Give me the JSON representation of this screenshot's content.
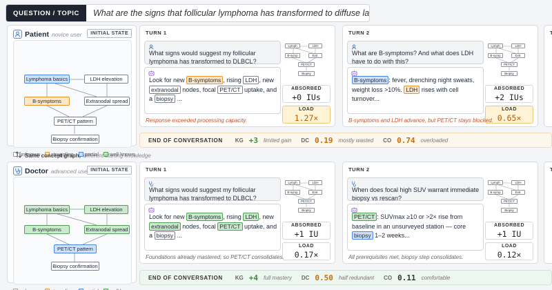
{
  "header": {
    "tag": "QUESTION / TOPIC",
    "question": "What are the signs that follicular lymphoma has transformed to diffuse large B-cell lymphoma?"
  },
  "legend": {
    "unknown": "unknown",
    "struggling": "struggling",
    "partial": "partial",
    "well_known": "well known"
  },
  "between": {
    "bold": "Same concept graph,",
    "italic": "different starting knowledge"
  },
  "colors": {
    "struggling": "#fde7c7",
    "partial": "#cfe0fb",
    "well_known": "#cde9cd",
    "unknown": "#ffffff"
  },
  "patient": {
    "name": "Patient",
    "subtitle": "novice user",
    "state_label": "INITIAL STATE",
    "nodes": {
      "basics": "Lymphoma basics",
      "ldh": "LDH elevation",
      "bsym": "B-symptoms",
      "extra": "Extranodal spread",
      "pet": "PET/CT pattern",
      "biopsy": "Biopsy confirmation"
    },
    "turn1": {
      "label": "TURN 1",
      "user": "What signs would suggest my follicular lymphoma has transformed to DLBCL?",
      "a1": "Look for new",
      "t1": "B-symptoms",
      "a2": ", rising",
      "t2": "LDH",
      "a3": ", new",
      "t3": "extranodal",
      "a4": "nodes, focal",
      "t4": "PET/CT",
      "a5": "uptake, and a",
      "t5": "biopsy",
      "a6": "...",
      "absorbed_label": "ABSORBED",
      "absorbed": "+0 IUs",
      "load_label": "LOAD",
      "load": "1.27×",
      "note": "Response exceeded processing capacity.",
      "mini": {
        "lymph": "Lymph",
        "ldh": "LDH",
        "bsymp": "B-symp",
        "extr": "Extr.",
        "pet": "PET/CT",
        "biopsy": "Biopsy"
      }
    },
    "turn2": {
      "label": "TURN 2",
      "user": "What are B-symptoms? And what does LDH have to do with this?",
      "t1": "B-symptoms",
      "a1": ": fever, drenching night sweats, weight loss >10%.",
      "t2": "LDH",
      "a2": "rises with cell turnover...",
      "absorbed_label": "ABSORBED",
      "absorbed": "+2 IUs",
      "load_label": "LOAD",
      "load": "0.65×",
      "note": "B-symptoms and LDH advance, but PET/CT stays blocked.",
      "mini": {
        "lymph": "Lymph",
        "ldh": "LDH",
        "bsymp": "B-symp",
        "extr": "Extr.",
        "pet": "PET/CT",
        "biopsy": "Biopsy"
      }
    },
    "eoc": {
      "title": "END OF CONVERSATION",
      "kg_label": "KG",
      "kg": "+3",
      "kg_desc": "limited gain",
      "dc_label": "DC",
      "dc": "0.19",
      "dc_desc": "mostly wasted",
      "co_label": "CO",
      "co": "0.74",
      "co_desc": "overloaded"
    }
  },
  "doctor": {
    "name": "Doctor",
    "subtitle": "advanced user",
    "state_label": "INITIAL STATE",
    "nodes": {
      "basics": "Lymphoma basics",
      "ldh": "LDH elevation",
      "bsym": "B-symptoms",
      "extra": "Extranodal spread",
      "pet": "PET/CT pattern",
      "biopsy": "Biopsy confirmation"
    },
    "turn1": {
      "label": "TURN 1",
      "user": "What signs would suggest my follicular lymphoma has transformed to DLBCL?",
      "a1": "Look for new",
      "t1": "B-symptoms",
      "a2": ", rising",
      "t2": "LDH",
      "a3": ", new",
      "t3": "extranodal",
      "a4": "nodes, focal",
      "t4": "PET/CT",
      "a5": "uptake, and a",
      "t5": "biopsy",
      "a6": "...",
      "absorbed_label": "ABSORBED",
      "absorbed": "+1 IU",
      "load_label": "LOAD",
      "load": "0.17×",
      "note": "Foundations already mastered, so PET/CT consolidates.",
      "mini": {
        "lymph": "Lymph",
        "ldh": "LDH",
        "bsymp": "B-symp",
        "extr": "Extr.",
        "pet": "PET/CT",
        "biopsy": "Biopsy"
      }
    },
    "turn2": {
      "label": "TURN 2",
      "user": "When does focal high SUV warrant immediate biopsy vs rescan?",
      "t1": "PET/CT",
      "a1": ": SUVmax ≥10 or >2× rise from baseline in an unsurveyed station — core",
      "t2": "biopsy",
      "a2": "1–2 weeks...",
      "absorbed_label": "ABSORBED",
      "absorbed": "+1 IU",
      "load_label": "LOAD",
      "load": "0.12×",
      "note": "All prerequisites met, biopsy step consolidates.",
      "mini": {
        "lymph": "Lymph",
        "ldh": "LDH",
        "bsymp": "B-symp",
        "extr": "Extr.",
        "pet": "PET/CT",
        "biopsy": "Biopsy"
      }
    },
    "eoc": {
      "title": "END OF CONVERSATION",
      "kg_label": "KG",
      "kg": "+4",
      "kg_desc": "full mastery",
      "dc_label": "DC",
      "dc": "0.50",
      "dc_desc": "half redundant",
      "co_label": "CO",
      "co": "0.11",
      "co_desc": "comfortable"
    }
  },
  "turn3_label": "T"
}
